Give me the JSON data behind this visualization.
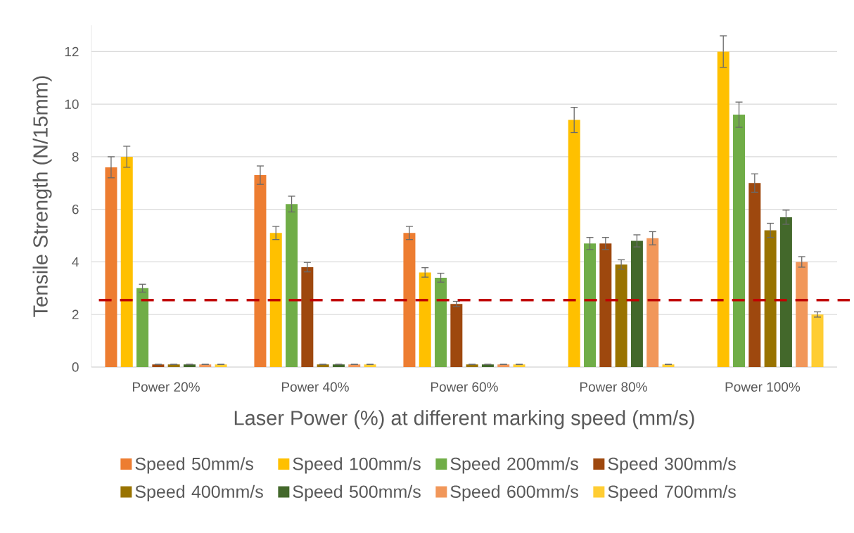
{
  "chart_data": {
    "type": "bar",
    "xlabel": "Laser Power (%) at different marking speed (mm/s)",
    "ylabel": "Tensile Strength (N/15mm)",
    "categories": [
      "Power 20%",
      "Power 40%",
      "Power 60%",
      "Power 80%",
      "Power 100%"
    ],
    "series": [
      {
        "name": "Speed 50mm/s",
        "color": "#ed7d31",
        "values": [
          7.6,
          7.3,
          5.1,
          null,
          null
        ],
        "errors": [
          0.4,
          0.35,
          0.25,
          null,
          null
        ]
      },
      {
        "name": "Speed 100mm/s",
        "color": "#ffc000",
        "values": [
          8.0,
          5.1,
          3.6,
          9.4,
          12.0
        ],
        "errors": [
          0.4,
          0.25,
          0.18,
          0.48,
          0.6
        ]
      },
      {
        "name": "Speed 200mm/s",
        "color": "#70ad47",
        "values": [
          3.0,
          6.2,
          3.4,
          4.7,
          9.6
        ],
        "errors": [
          0.15,
          0.3,
          0.17,
          0.23,
          0.48
        ]
      },
      {
        "name": "Speed 300mm/s",
        "color": "#9e480e",
        "values": [
          0.1,
          3.8,
          2.4,
          4.7,
          7.0
        ],
        "errors": [
          null,
          0.18,
          0.1,
          0.23,
          0.35
        ]
      },
      {
        "name": "Speed 400mm/s",
        "color": "#997300",
        "values": [
          0.1,
          0.1,
          0.1,
          3.9,
          5.2
        ],
        "errors": [
          null,
          null,
          null,
          0.18,
          0.27
        ]
      },
      {
        "name": "Speed 500mm/s",
        "color": "#43682b",
        "values": [
          0.1,
          0.1,
          0.1,
          4.8,
          5.7
        ],
        "errors": [
          null,
          null,
          null,
          0.23,
          0.27
        ]
      },
      {
        "name": "Speed 600mm/s",
        "color": "#f1975a",
        "values": [
          0.1,
          0.1,
          0.1,
          4.9,
          4.0
        ],
        "errors": [
          null,
          null,
          null,
          0.25,
          0.2
        ]
      },
      {
        "name": "Speed 700mm/s",
        "color": "#ffcd33",
        "values": [
          0.1,
          0.1,
          0.1,
          0.1,
          2.0
        ],
        "errors": [
          null,
          null,
          null,
          null,
          0.1
        ]
      }
    ],
    "ylim": [
      0,
      13
    ],
    "yticks": [
      0,
      2,
      4,
      6,
      8,
      10,
      12
    ],
    "grid": "y",
    "legend": "bottom",
    "ref_lines": [
      {
        "axis": "y",
        "value": 2.55,
        "color": "#c00000",
        "line_style": "dashed"
      }
    ]
  }
}
